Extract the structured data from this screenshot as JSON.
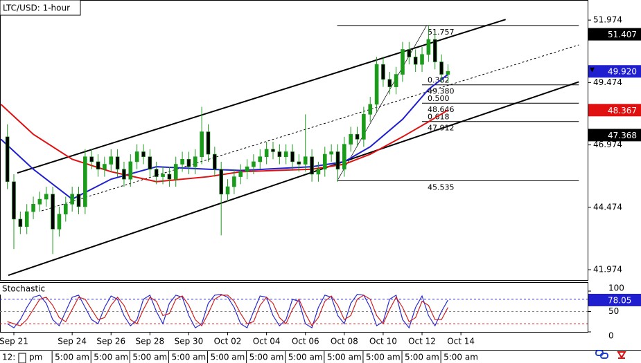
{
  "chart_data": [
    {
      "type": "candlestick",
      "title": "LTC/USD: 1-hour",
      "x": [
        -1,
        0,
        1,
        2,
        3,
        4,
        5,
        6,
        7,
        8,
        9,
        10,
        11,
        12,
        13,
        14,
        15,
        16,
        17,
        18,
        19,
        20,
        21,
        22,
        23,
        24,
        25,
        26,
        27,
        28,
        29,
        30,
        31,
        32,
        33,
        34,
        35,
        36,
        37,
        38,
        39,
        40,
        41,
        42,
        43,
        44,
        45,
        46,
        47,
        48,
        49,
        50,
        51,
        52,
        53,
        54,
        55,
        56,
        57,
        58,
        59,
        60,
        61,
        62,
        63,
        64,
        65,
        66,
        67
      ],
      "open": [
        47.3,
        45.5,
        44.0,
        43.7,
        44.3,
        44.6,
        44.8,
        45.0,
        43.6,
        44.2,
        44.6,
        45.0,
        44.5,
        46.5,
        46.3,
        46.0,
        46.2,
        46.5,
        46.0,
        45.6,
        46.3,
        46.7,
        46.5,
        46.0,
        45.7,
        45.8,
        45.6,
        46.2,
        46.4,
        46.1,
        46.5,
        47.5,
        46.6,
        46.0,
        45.0,
        45.3,
        45.7,
        45.9,
        46.1,
        46.3,
        46.5,
        46.8,
        46.7,
        46.5,
        46.7,
        46.3,
        46.2,
        46.5,
        45.8,
        46.0,
        46.6,
        46.7,
        46.0,
        47.0,
        47.4,
        47.2,
        48.2,
        48.6,
        50.2,
        49.6,
        49.3,
        49.8,
        50.8,
        50.5,
        50.2,
        50.6,
        51.2,
        50.3,
        49.8
      ],
      "high": [
        47.8,
        45.8,
        44.3,
        44.6,
        44.9,
        45.1,
        45.3,
        45.3,
        44.5,
        44.9,
        45.3,
        45.3,
        46.8,
        46.8,
        46.6,
        46.5,
        46.8,
        46.8,
        46.3,
        46.6,
        47.0,
        47.0,
        46.8,
        46.3,
        46.1,
        46.1,
        46.5,
        46.7,
        46.7,
        46.8,
        48.5,
        47.8,
        46.9,
        46.3,
        45.6,
        46.0,
        46.2,
        46.4,
        46.6,
        46.8,
        47.1,
        47.1,
        47.0,
        47.0,
        47.0,
        46.6,
        48.2,
        46.8,
        46.3,
        46.9,
        47.0,
        47.0,
        47.3,
        47.7,
        47.7,
        48.5,
        48.9,
        50.5,
        50.5,
        49.9,
        50.1,
        51.1,
        51.1,
        50.8,
        50.9,
        51.757,
        51.5,
        50.6,
        50.2
      ],
      "low": [
        45.2,
        42.8,
        43.4,
        43.4,
        44.0,
        44.3,
        44.5,
        42.6,
        43.3,
        43.9,
        44.3,
        44.2,
        44.2,
        46.0,
        45.7,
        45.7,
        45.9,
        45.7,
        45.3,
        45.3,
        46.0,
        46.2,
        45.7,
        45.4,
        45.4,
        45.3,
        45.3,
        45.9,
        45.8,
        45.8,
        46.2,
        46.3,
        45.7,
        43.35,
        44.7,
        45.0,
        45.4,
        45.6,
        45.8,
        46.0,
        46.2,
        46.4,
        46.2,
        46.2,
        46.0,
        45.9,
        45.9,
        45.5,
        45.5,
        45.7,
        46.3,
        45.5,
        45.7,
        46.7,
        46.9,
        46.9,
        47.9,
        48.3,
        49.3,
        49.0,
        49.0,
        49.5,
        50.2,
        49.9,
        49.9,
        50.3,
        50.0,
        49.5,
        49.5
      ],
      "close": [
        45.5,
        44.0,
        43.7,
        44.3,
        44.6,
        44.8,
        45.0,
        43.6,
        44.2,
        44.6,
        45.0,
        44.5,
        46.5,
        46.3,
        46.0,
        46.2,
        46.5,
        46.0,
        45.6,
        46.3,
        46.7,
        46.5,
        46.0,
        45.7,
        45.8,
        45.6,
        46.2,
        46.4,
        46.1,
        46.5,
        47.5,
        46.6,
        46.0,
        45.0,
        45.3,
        45.7,
        45.9,
        46.1,
        46.3,
        46.5,
        46.8,
        46.7,
        46.5,
        46.7,
        46.3,
        46.2,
        46.5,
        45.8,
        46.0,
        46.6,
        46.7,
        46.0,
        47.0,
        47.4,
        47.2,
        48.2,
        48.6,
        50.2,
        49.6,
        49.3,
        49.8,
        50.8,
        50.5,
        50.2,
        50.6,
        51.2,
        50.3,
        49.8,
        49.92
      ],
      "up_color": "#1a9b1a",
      "down_color": "#000000",
      "xlim": [
        -2.14,
        88.56
      ],
      "xticks": [
        {
          "value": 0,
          "label": "Sep 21"
        },
        {
          "value": 9,
          "label": "Sep 24"
        },
        {
          "value": 15,
          "label": "Sep 26"
        },
        {
          "value": 21,
          "label": "Sep 28"
        },
        {
          "value": 27,
          "label": "Sep 30"
        },
        {
          "value": 33,
          "label": "Oct 02"
        },
        {
          "value": 39,
          "label": "Oct 04"
        },
        {
          "value": 45,
          "label": "Oct 06"
        },
        {
          "value": 51,
          "label": "Oct 08"
        },
        {
          "value": 57,
          "label": "Oct 10"
        },
        {
          "value": 63,
          "label": "Oct 12"
        },
        {
          "value": 69,
          "label": "Oct 14"
        }
      ],
      "time_labels": [
        "12:",
        "pm",
        "5:00 am",
        "5:00 am",
        "5:00 am",
        "5:00 am",
        "5:00 am",
        "5:00 am",
        "5:00 am",
        "5:00 am",
        "5:00 am",
        "5:00 am",
        "5:00 am"
      ],
      "ylim": [
        41.56,
        52.78
      ],
      "yticks": [
        51.974,
        49.474,
        46.974,
        44.474,
        41.974
      ],
      "lines": [
        {
          "color": "#1f1fcf",
          "x": [
            -2,
            3,
            9,
            15,
            22,
            30,
            35,
            46,
            51,
            55,
            60,
            64,
            67
          ],
          "values": [
            47.2,
            46.0,
            44.8,
            45.6,
            46.1,
            46.0,
            45.95,
            46.1,
            46.3,
            46.9,
            48.0,
            49.2,
            49.8
          ]
        },
        {
          "color": "#e01010",
          "x": [
            -2,
            3,
            9,
            15,
            22,
            30,
            35,
            46,
            51,
            55,
            60,
            64,
            67
          ],
          "values": [
            48.6,
            47.4,
            46.4,
            45.9,
            45.5,
            45.7,
            45.9,
            46.0,
            46.2,
            46.6,
            47.3,
            47.9,
            48.37
          ]
        }
      ],
      "trendlines": [
        {
          "x": [
            0.53,
            75.9
          ],
          "values": [
            45.85,
            52.0
          ],
          "dashed": false,
          "width": 2
        },
        {
          "x": [
            -0.86,
            87.2
          ],
          "values": [
            41.75,
            49.5
          ],
          "dashed": false,
          "width": 2
        },
        {
          "x": [
            4.28,
            87.2
          ],
          "values": [
            44.33,
            50.98
          ],
          "dashed": true,
          "width": 1
        },
        {
          "x": [
            49.9,
            63.7
          ],
          "values": [
            45.535,
            51.757
          ],
          "dashed": false,
          "width": 0.7
        }
      ],
      "fib": {
        "values": [
          51.757,
          49.38,
          48.646,
          47.912,
          45.535
        ],
        "value_labels": [
          "51.757",
          "49.380",
          "48.646",
          "47.912",
          "45.535"
        ],
        "ratios": [
          null,
          "0.382",
          "0.500",
          "0.618",
          null
        ],
        "x": [
          [
            49.9,
            87.2
          ],
          [
            63.0,
            87.2
          ],
          [
            63.0,
            87.2
          ],
          [
            63.0,
            87.2
          ],
          [
            49.9,
            87.2
          ]
        ]
      },
      "price_tags": [
        {
          "value": 51.407,
          "color": "#000000"
        },
        {
          "value": 49.92,
          "label": "49.920",
          "color": "#1f1fcf"
        },
        {
          "value": 48.367,
          "color": "#e01010"
        },
        {
          "value": 47.368,
          "color": "#000000"
        }
      ]
    },
    {
      "type": "stochastic",
      "title": "Stochastic",
      "series": [
        {
          "color": "#2a2ad0",
          "values": [
            20,
            10,
            30,
            60,
            85,
            90,
            70,
            30,
            15,
            50,
            85,
            90,
            60,
            30,
            20,
            60,
            88,
            80,
            40,
            15,
            30,
            80,
            90,
            50,
            20,
            70,
            90,
            85,
            40,
            10,
            20,
            70,
            90,
            92,
            85,
            60,
            20,
            10,
            50,
            88,
            85,
            40,
            15,
            30,
            80,
            75,
            20,
            10,
            60,
            90,
            85,
            40,
            20,
            70,
            92,
            90,
            60,
            15,
            25,
            80,
            90,
            30,
            10,
            60,
            88,
            40,
            15,
            50,
            78.05
          ]
        },
        {
          "color": "#d02020",
          "values": [
            25,
            20,
            15,
            30,
            55,
            80,
            85,
            65,
            35,
            25,
            55,
            85,
            80,
            55,
            30,
            35,
            65,
            85,
            65,
            30,
            20,
            55,
            85,
            75,
            40,
            45,
            80,
            88,
            65,
            30,
            15,
            45,
            80,
            90,
            90,
            75,
            45,
            20,
            25,
            65,
            85,
            70,
            35,
            20,
            55,
            80,
            45,
            15,
            35,
            75,
            88,
            65,
            30,
            40,
            80,
            90,
            80,
            40,
            20,
            55,
            85,
            60,
            25,
            35,
            75,
            65,
            30,
            30,
            60
          ]
        }
      ],
      "ylim": [
        0,
        100
      ],
      "yticks": [
        100,
        50,
        0
      ],
      "levels": [
        {
          "value": 80,
          "color": "#2a2ad0"
        },
        {
          "value": 50,
          "color": "#888888"
        },
        {
          "value": 20,
          "color": "#d02020"
        }
      ],
      "price_tag": {
        "value": 78.05,
        "color": "#1f1fcf"
      }
    }
  ]
}
